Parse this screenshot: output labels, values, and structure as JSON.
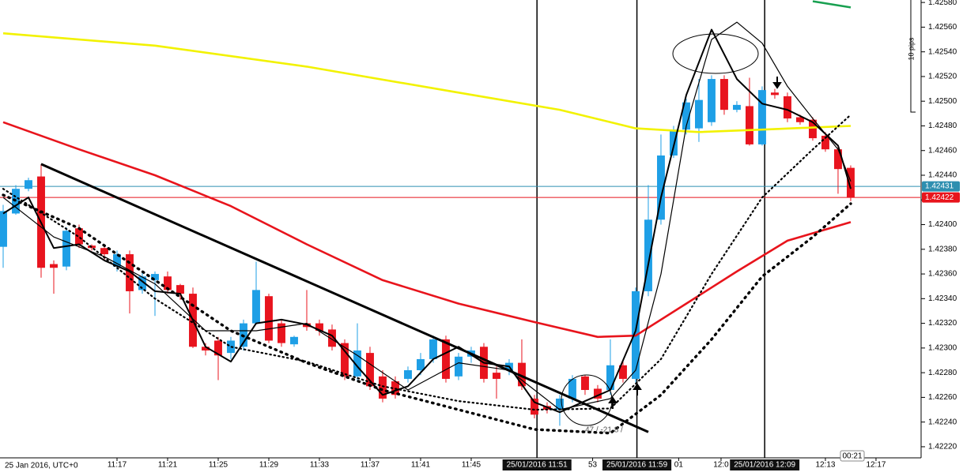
{
  "chart_data": {
    "type": "candlestick",
    "x_axis_label": "25 Jan 2016, UTC+0",
    "up_color": "#1e9fe6",
    "down_color": "#e8141e",
    "x": [
      8,
      9,
      10,
      11,
      12,
      13,
      14,
      15,
      16,
      17,
      18,
      19,
      20,
      21,
      22,
      23,
      24,
      25,
      26,
      27,
      28,
      29,
      30,
      31,
      32,
      33,
      34,
      35,
      36,
      37,
      38,
      39,
      40,
      41,
      42,
      43,
      44,
      45,
      46,
      47,
      48,
      49,
      50,
      51,
      52,
      53,
      54,
      55,
      56,
      57,
      58,
      59,
      60,
      61,
      62,
      63,
      64,
      65,
      66,
      67,
      68,
      69,
      70,
      71,
      72,
      73,
      74,
      75
    ],
    "open": [
      1.42382,
      1.42409,
      1.42429,
      1.42439,
      1.42368,
      1.42366,
      1.42397,
      1.42383,
      1.42381,
      1.42366,
      1.42376,
      1.42347,
      1.42355,
      1.42358,
      1.42351,
      1.42344,
      1.42301,
      1.42306,
      1.42296,
      1.42301,
      1.4232,
      1.42342,
      1.4232,
      1.42303,
      1.4232,
      1.4232,
      1.42315,
      1.42304,
      1.42277,
      1.42296,
      1.42277,
      1.42273,
      1.42275,
      1.42282,
      1.42291,
      1.42307,
      1.42277,
      1.42293,
      1.42301,
      1.4228,
      1.42282,
      1.42288,
      1.42259,
      1.42253,
      1.4225,
      1.42259,
      1.42277,
      1.42267,
      1.42266,
      1.42286,
      1.42275,
      1.42346,
      1.42404,
      1.42456,
      1.42477,
      1.42478,
      1.42483,
      1.42518,
      1.42493,
      1.42496,
      1.42465,
      1.42507,
      1.42504,
      1.42487,
      1.42485,
      1.42472,
      1.42461,
      1.42446
    ],
    "high": [
      1.42416,
      1.42432,
      1.42438,
      1.42449,
      1.42371,
      1.42398,
      1.424,
      1.42384,
      1.42384,
      1.42379,
      1.42379,
      1.42362,
      1.42362,
      1.42362,
      1.42352,
      1.42349,
      1.42304,
      1.42309,
      1.42309,
      1.42323,
      1.4237,
      1.42344,
      1.42323,
      1.4231,
      1.42347,
      1.42323,
      1.42319,
      1.42307,
      1.4232,
      1.42301,
      1.42282,
      1.42277,
      1.42285,
      1.42296,
      1.4231,
      1.4231,
      1.42296,
      1.42301,
      1.42304,
      1.42285,
      1.42291,
      1.42307,
      1.42262,
      1.42256,
      1.42262,
      1.42278,
      1.42278,
      1.4227,
      1.42307,
      1.42289,
      1.42349,
      1.42432,
      1.42473,
      1.4248,
      1.42502,
      1.42518,
      1.42521,
      1.42521,
      1.425,
      1.42519,
      1.42512,
      1.4251,
      1.42507,
      1.42489,
      1.42487,
      1.42475,
      1.42464,
      1.42448
    ],
    "low": [
      1.42365,
      1.42408,
      1.42427,
      1.42357,
      1.42344,
      1.42363,
      1.42381,
      1.42379,
      1.42371,
      1.42362,
      1.42328,
      1.42344,
      1.42326,
      1.42344,
      1.42339,
      1.423,
      1.42294,
      1.42274,
      1.42291,
      1.42298,
      1.42319,
      1.42304,
      1.42301,
      1.42301,
      1.42314,
      1.4231,
      1.42298,
      1.42274,
      1.42274,
      1.42266,
      1.42256,
      1.42259,
      1.42272,
      1.42278,
      1.42288,
      1.42272,
      1.42274,
      1.42288,
      1.42272,
      1.42259,
      1.42278,
      1.42266,
      1.42243,
      1.42247,
      1.42237,
      1.42256,
      1.42262,
      1.42256,
      1.42262,
      1.42272,
      1.42272,
      1.42342,
      1.424,
      1.42454,
      1.42473,
      1.42467,
      1.4248,
      1.42489,
      1.42491,
      1.42464,
      1.42464,
      1.42502,
      1.42483,
      1.42481,
      1.42468,
      1.42459,
      1.42425,
      1.42419
    ],
    "close": [
      1.42411,
      1.42429,
      1.42436,
      1.42365,
      1.42365,
      1.42395,
      1.42384,
      1.42381,
      1.42376,
      1.42376,
      1.42346,
      1.42358,
      1.4236,
      1.42347,
      1.42344,
      1.42301,
      1.42298,
      1.42294,
      1.42306,
      1.4232,
      1.42347,
      1.42306,
      1.42304,
      1.42309,
      1.42317,
      1.42314,
      1.42301,
      1.42277,
      1.42298,
      1.42269,
      1.42259,
      1.42262,
      1.42282,
      1.42291,
      1.42307,
      1.42275,
      1.42293,
      1.42298,
      1.42275,
      1.42275,
      1.42288,
      1.42269,
      1.42246,
      1.4225,
      1.42259,
      1.42275,
      1.42266,
      1.42259,
      1.42286,
      1.42275,
      1.42346,
      1.42404,
      1.42456,
      1.42477,
      1.42499,
      1.42501,
      1.42518,
      1.42493,
      1.42497,
      1.42465,
      1.42509,
      1.42505,
      1.42486,
      1.42483,
      1.4247,
      1.42461,
      1.42445,
      1.42422
    ],
    "lines": [
      {
        "color": "#f2f200",
        "style": "bold",
        "x": [
          8,
          20,
          32,
          44,
          52,
          58,
          63,
          68,
          75
        ],
        "values": [
          1.42555,
          1.42545,
          1.42528,
          1.42507,
          1.42493,
          1.42478,
          1.42475,
          1.42477,
          1.4248
        ]
      },
      {
        "color": "#e8141c",
        "style": "bold",
        "x": [
          8,
          14,
          20,
          26,
          32,
          38,
          44,
          50,
          55,
          58,
          62,
          66,
          70,
          75
        ],
        "values": [
          1.42483,
          1.42461,
          1.4244,
          1.42415,
          1.42384,
          1.42355,
          1.42336,
          1.42321,
          1.42309,
          1.4231,
          1.42336,
          1.42362,
          1.42387,
          1.42402
        ]
      },
      {
        "color": "#18a050",
        "style": "bold",
        "x": [
          72,
          75
        ],
        "values": [
          1.42581,
          1.42576
        ]
      },
      {
        "color": "#000000",
        "style": "solid",
        "x": [
          8,
          10,
          12,
          14,
          16,
          18,
          20,
          22,
          24,
          26,
          28,
          30,
          32,
          34,
          36,
          38,
          40,
          42,
          44,
          46,
          48,
          50,
          52,
          54,
          56,
          58,
          60,
          62,
          64,
          66,
          68,
          70,
          72,
          74,
          75
        ],
        "values": [
          1.42409,
          1.42422,
          1.42381,
          1.42384,
          1.42371,
          1.42362,
          1.42346,
          1.42344,
          1.42301,
          1.42289,
          1.4232,
          1.42323,
          1.42319,
          1.4231,
          1.42285,
          1.42262,
          1.42269,
          1.42291,
          1.42301,
          1.42288,
          1.42285,
          1.42256,
          1.42248,
          1.42257,
          1.42266,
          1.42314,
          1.42422,
          1.42505,
          1.42558,
          1.42518,
          1.42498,
          1.42493,
          1.42483,
          1.42464,
          1.42429
        ]
      },
      {
        "color": "#000000",
        "style": "thin",
        "x": [
          8,
          12,
          16,
          20,
          24,
          28,
          32,
          36,
          40,
          44,
          48,
          52,
          56,
          58,
          60,
          62,
          64,
          66,
          68,
          70,
          72,
          74,
          75
        ],
        "values": [
          1.42422,
          1.4239,
          1.42374,
          1.42352,
          1.42314,
          1.42314,
          1.4232,
          1.42294,
          1.42266,
          1.42288,
          1.42282,
          1.4225,
          1.42259,
          1.42282,
          1.4236,
          1.4248,
          1.4255,
          1.42564,
          1.42547,
          1.42512,
          1.42486,
          1.42461,
          1.42435
        ]
      },
      {
        "color": "#000000",
        "style": "dotted",
        "x": [
          8,
          14,
          20,
          26,
          32,
          38,
          44,
          50,
          56,
          60,
          64,
          68,
          72,
          75
        ],
        "values": [
          1.42429,
          1.4239,
          1.4234,
          1.42301,
          1.42289,
          1.42269,
          1.42257,
          1.4225,
          1.42251,
          1.42291,
          1.4236,
          1.42422,
          1.42461,
          1.42489
        ]
      },
      {
        "color": "#000000",
        "style": "dotted-bold",
        "x": [
          8,
          14,
          20,
          26,
          32,
          38,
          44,
          50,
          56,
          60,
          64,
          68,
          72,
          75
        ],
        "values": [
          1.42424,
          1.42397,
          1.42355,
          1.42314,
          1.42288,
          1.42266,
          1.4225,
          1.42234,
          1.42231,
          1.42262,
          1.42307,
          1.42358,
          1.4239,
          1.42417
        ]
      },
      {
        "color": "#000000",
        "style": "trend",
        "x": [
          11,
          59
        ],
        "values": [
          1.42449,
          1.42232
        ]
      }
    ],
    "hlines": [
      {
        "value": 1.42431,
        "label": "1.42431",
        "color": "#2e8fb0"
      },
      {
        "value": 1.42422,
        "label": "1.42422",
        "color": "#e8141c"
      }
    ],
    "annotations": [
      "47 / -21.8 /",
      "10 pips",
      "00:21"
    ],
    "xlim": [
      7.75,
      80.44
    ],
    "xticks": [
      {
        "value": 17,
        "label": "11:17"
      },
      {
        "value": 21,
        "label": "11:21"
      },
      {
        "value": 25,
        "label": "11:25"
      },
      {
        "value": 29,
        "label": "11:29"
      },
      {
        "value": 33,
        "label": "11:33"
      },
      {
        "value": 37,
        "label": "11:37"
      },
      {
        "value": 41,
        "label": "11:41"
      },
      {
        "value": 45,
        "label": "11:45"
      },
      {
        "value": 50.2,
        "label": "25/01/2016 11:51",
        "highlight": true
      },
      {
        "value": 54.6,
        "label": "53"
      },
      {
        "value": 58.1,
        "label": "25/01/2016 11:59",
        "highlight": true
      },
      {
        "value": 61.4,
        "label": "01"
      },
      {
        "value": 64.75,
        "label": "12:0"
      },
      {
        "value": 68.2,
        "label": "25/01/2016 12:09",
        "highlight": true
      },
      {
        "value": 73,
        "label": "12:13"
      },
      {
        "value": 77,
        "label": "12:17"
      }
    ],
    "ylim": [
      1.42211,
      1.42582
    ],
    "yticks": [
      {
        "value": 1.4258,
        "label": "1.42580"
      },
      {
        "value": 1.4256,
        "label": "1.42560"
      },
      {
        "value": 1.4254,
        "label": "1.42540"
      },
      {
        "value": 1.4252,
        "label": "1.42520"
      },
      {
        "value": 1.425,
        "label": "1.42500"
      },
      {
        "value": 1.4248,
        "label": "1.42480"
      },
      {
        "value": 1.4246,
        "label": "1.42460"
      },
      {
        "value": 1.4244,
        "label": "1.42440"
      },
      {
        "value": 1.4242,
        "label": "1.42420"
      },
      {
        "value": 1.424,
        "label": "1.42400"
      },
      {
        "value": 1.4238,
        "label": "1.42380"
      },
      {
        "value": 1.4236,
        "label": "1.42360"
      },
      {
        "value": 1.4234,
        "label": "1.42340"
      },
      {
        "value": 1.4232,
        "label": "1.42320"
      },
      {
        "value": 1.423,
        "label": "1.42300"
      },
      {
        "value": 1.4228,
        "label": "1.42280"
      },
      {
        "value": 1.4226,
        "label": "1.42260"
      },
      {
        "value": 1.4224,
        "label": "1.42240"
      },
      {
        "value": 1.4222,
        "label": "1.42220"
      }
    ]
  }
}
